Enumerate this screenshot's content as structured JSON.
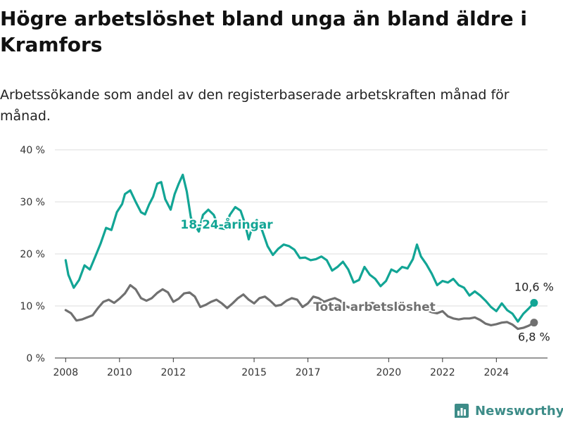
{
  "page": {
    "title": "Högre arbetslöshet bland unga än bland äldre i Kramfors",
    "subtitle": "Arbetssökande som andel av den registerbaserade arbetskraften månad för månad.",
    "brand": "Newsworthy",
    "brand_icon": "bar-chart-logo-icon"
  },
  "chart_data": {
    "type": "line",
    "title": "Högre arbetslöshet bland unga än bland äldre i Kramfors",
    "subtitle": "Arbetssökande som andel av den registerbaserade arbetskraften månad för månad.",
    "xlabel": "",
    "ylabel": "",
    "xlim": [
      2007.6,
      2025.9
    ],
    "ylim": [
      0,
      40
    ],
    "y_ticks": [
      0,
      10,
      20,
      30,
      40
    ],
    "y_tick_labels": [
      "0 %",
      "10 %",
      "20 %",
      "30 %",
      "40 %"
    ],
    "x_ticks": [
      2008,
      2010,
      2012,
      2015,
      2017,
      2020,
      2022,
      2024
    ],
    "x_tick_labels": [
      "2008",
      "2010",
      "2012",
      "2015",
      "2017",
      "2020",
      "2022",
      "2024"
    ],
    "grid": "horizontal",
    "legend": "none",
    "series": [
      {
        "name": "18-24-åringar",
        "color": "#12a595",
        "end_label": "10,6 %",
        "points": [
          [
            2008.0,
            18.8
          ],
          [
            2008.1,
            16.0
          ],
          [
            2008.3,
            13.5
          ],
          [
            2008.5,
            15.0
          ],
          [
            2008.7,
            17.8
          ],
          [
            2008.9,
            17.0
          ],
          [
            2009.1,
            19.5
          ],
          [
            2009.3,
            22.0
          ],
          [
            2009.5,
            25.0
          ],
          [
            2009.7,
            24.6
          ],
          [
            2009.9,
            28.0
          ],
          [
            2010.1,
            29.6
          ],
          [
            2010.2,
            31.5
          ],
          [
            2010.4,
            32.2
          ],
          [
            2010.6,
            30.0
          ],
          [
            2010.8,
            28.0
          ],
          [
            2010.95,
            27.6
          ],
          [
            2011.1,
            29.5
          ],
          [
            2011.25,
            31.0
          ],
          [
            2011.4,
            33.5
          ],
          [
            2011.55,
            33.8
          ],
          [
            2011.7,
            30.5
          ],
          [
            2011.9,
            28.5
          ],
          [
            2012.05,
            31.5
          ],
          [
            2012.2,
            33.5
          ],
          [
            2012.35,
            35.2
          ],
          [
            2012.5,
            32.0
          ],
          [
            2012.65,
            27.0
          ],
          [
            2012.8,
            25.5
          ],
          [
            2012.95,
            24.3
          ],
          [
            2013.1,
            27.5
          ],
          [
            2013.3,
            28.5
          ],
          [
            2013.5,
            27.5
          ],
          [
            2013.7,
            25.0
          ],
          [
            2013.9,
            24.8
          ],
          [
            2014.1,
            27.5
          ],
          [
            2014.3,
            29.0
          ],
          [
            2014.5,
            28.3
          ],
          [
            2014.65,
            26.0
          ],
          [
            2014.8,
            22.8
          ],
          [
            2014.95,
            25.5
          ],
          [
            2015.1,
            26.5
          ],
          [
            2015.3,
            24.5
          ],
          [
            2015.5,
            21.5
          ],
          [
            2015.7,
            19.8
          ],
          [
            2015.9,
            21.0
          ],
          [
            2016.1,
            21.8
          ],
          [
            2016.3,
            21.5
          ],
          [
            2016.5,
            20.8
          ],
          [
            2016.7,
            19.2
          ],
          [
            2016.9,
            19.3
          ],
          [
            2017.1,
            18.8
          ],
          [
            2017.3,
            19.0
          ],
          [
            2017.5,
            19.5
          ],
          [
            2017.7,
            18.8
          ],
          [
            2017.9,
            16.8
          ],
          [
            2018.1,
            17.5
          ],
          [
            2018.3,
            18.5
          ],
          [
            2018.5,
            17.0
          ],
          [
            2018.7,
            14.5
          ],
          [
            2018.9,
            15.0
          ],
          [
            2019.1,
            17.5
          ],
          [
            2019.3,
            16.0
          ],
          [
            2019.5,
            15.2
          ],
          [
            2019.7,
            13.8
          ],
          [
            2019.9,
            14.8
          ],
          [
            2020.1,
            17.0
          ],
          [
            2020.3,
            16.5
          ],
          [
            2020.5,
            17.5
          ],
          [
            2020.7,
            17.2
          ],
          [
            2020.9,
            19.0
          ],
          [
            2021.05,
            21.8
          ],
          [
            2021.2,
            19.5
          ],
          [
            2021.4,
            18.0
          ],
          [
            2021.6,
            16.2
          ],
          [
            2021.8,
            14.0
          ],
          [
            2022.0,
            14.8
          ],
          [
            2022.2,
            14.5
          ],
          [
            2022.4,
            15.2
          ],
          [
            2022.6,
            14.0
          ],
          [
            2022.8,
            13.5
          ],
          [
            2023.0,
            12.0
          ],
          [
            2023.2,
            12.8
          ],
          [
            2023.4,
            12.0
          ],
          [
            2023.6,
            11.0
          ],
          [
            2023.8,
            9.8
          ],
          [
            2024.0,
            9.0
          ],
          [
            2024.2,
            10.5
          ],
          [
            2024.4,
            9.2
          ],
          [
            2024.6,
            8.5
          ],
          [
            2024.8,
            7.0
          ],
          [
            2025.0,
            8.5
          ],
          [
            2025.2,
            9.5
          ],
          [
            2025.4,
            10.6
          ]
        ]
      },
      {
        "name": "Total arbetslöshet",
        "color": "#707070",
        "end_label": "6,8 %",
        "points": [
          [
            2008.0,
            9.2
          ],
          [
            2008.2,
            8.6
          ],
          [
            2008.4,
            7.2
          ],
          [
            2008.6,
            7.4
          ],
          [
            2008.8,
            7.8
          ],
          [
            2009.0,
            8.2
          ],
          [
            2009.2,
            9.6
          ],
          [
            2009.4,
            10.8
          ],
          [
            2009.6,
            11.2
          ],
          [
            2009.8,
            10.6
          ],
          [
            2010.0,
            11.4
          ],
          [
            2010.2,
            12.4
          ],
          [
            2010.4,
            14.0
          ],
          [
            2010.6,
            13.2
          ],
          [
            2010.8,
            11.5
          ],
          [
            2011.0,
            11.0
          ],
          [
            2011.2,
            11.5
          ],
          [
            2011.4,
            12.5
          ],
          [
            2011.6,
            13.2
          ],
          [
            2011.8,
            12.6
          ],
          [
            2012.0,
            10.8
          ],
          [
            2012.2,
            11.4
          ],
          [
            2012.4,
            12.4
          ],
          [
            2012.6,
            12.6
          ],
          [
            2012.8,
            11.8
          ],
          [
            2013.0,
            9.8
          ],
          [
            2013.2,
            10.2
          ],
          [
            2013.4,
            10.8
          ],
          [
            2013.6,
            11.2
          ],
          [
            2013.8,
            10.5
          ],
          [
            2014.0,
            9.6
          ],
          [
            2014.2,
            10.5
          ],
          [
            2014.4,
            11.5
          ],
          [
            2014.6,
            12.2
          ],
          [
            2014.8,
            11.2
          ],
          [
            2015.0,
            10.5
          ],
          [
            2015.2,
            11.5
          ],
          [
            2015.4,
            11.8
          ],
          [
            2015.6,
            11.0
          ],
          [
            2015.8,
            10.0
          ],
          [
            2016.0,
            10.2
          ],
          [
            2016.2,
            11.0
          ],
          [
            2016.4,
            11.5
          ],
          [
            2016.6,
            11.2
          ],
          [
            2016.8,
            9.8
          ],
          [
            2017.0,
            10.5
          ],
          [
            2017.2,
            11.8
          ],
          [
            2017.4,
            11.5
          ],
          [
            2017.6,
            10.8
          ],
          [
            2017.8,
            11.2
          ],
          [
            2018.0,
            11.5
          ],
          [
            2018.2,
            11.0
          ],
          [
            2018.4,
            10.0
          ],
          [
            2018.6,
            9.5
          ],
          [
            2018.8,
            9.6
          ],
          [
            2019.0,
            10.0
          ],
          [
            2019.2,
            10.3
          ],
          [
            2019.4,
            10.6
          ],
          [
            2019.6,
            10.0
          ],
          [
            2019.8,
            9.5
          ],
          [
            2020.0,
            9.6
          ],
          [
            2020.2,
            10.0
          ],
          [
            2020.4,
            10.4
          ],
          [
            2020.6,
            10.2
          ],
          [
            2020.8,
            9.6
          ],
          [
            2021.0,
            9.4
          ],
          [
            2021.2,
            9.5
          ],
          [
            2021.4,
            9.2
          ],
          [
            2021.6,
            8.8
          ],
          [
            2021.8,
            8.6
          ],
          [
            2022.0,
            9.0
          ],
          [
            2022.2,
            8.0
          ],
          [
            2022.4,
            7.6
          ],
          [
            2022.6,
            7.4
          ],
          [
            2022.8,
            7.6
          ],
          [
            2023.0,
            7.6
          ],
          [
            2023.2,
            7.8
          ],
          [
            2023.4,
            7.3
          ],
          [
            2023.6,
            6.6
          ],
          [
            2023.8,
            6.3
          ],
          [
            2024.0,
            6.5
          ],
          [
            2024.2,
            6.8
          ],
          [
            2024.4,
            6.9
          ],
          [
            2024.6,
            6.4
          ],
          [
            2024.8,
            5.6
          ],
          [
            2025.0,
            5.8
          ],
          [
            2025.2,
            6.2
          ],
          [
            2025.4,
            6.8
          ]
        ]
      }
    ]
  }
}
